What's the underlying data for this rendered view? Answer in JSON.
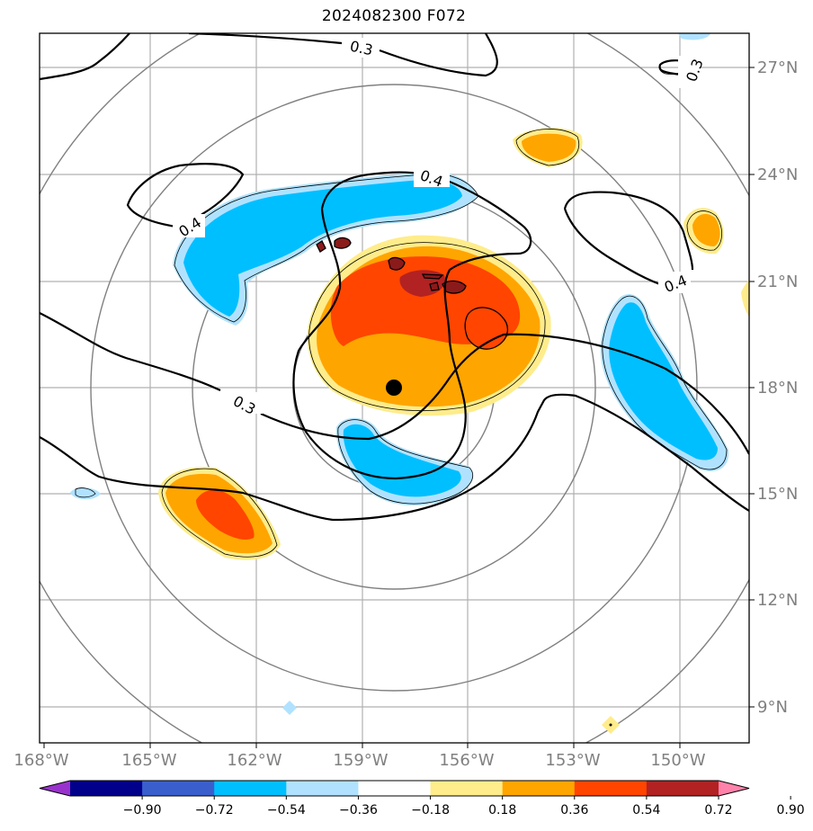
{
  "title": "2024082300 F072",
  "x_axis": {
    "tick_labels": [
      "168°W",
      "165°W",
      "162°W",
      "159°W",
      "156°W",
      "153°W",
      "150°W"
    ]
  },
  "y_axis": {
    "tick_labels": [
      "27°N",
      "24°N",
      "21°N",
      "18°N",
      "15°N",
      "12°N",
      "9°N"
    ]
  },
  "colorbar": {
    "tick_labels": [
      "−0.90",
      "−0.72",
      "−0.54",
      "−0.36",
      "−0.18",
      "0.18",
      "0.36",
      "0.54",
      "0.72",
      "0.90"
    ],
    "colors": [
      "#9932cc",
      "#00008b",
      "#3a5fcd",
      "#00bfff",
      "#b0e2ff",
      "#ffffff",
      "#ffec8b",
      "#ffa500",
      "#ff4500",
      "#b22222",
      "#ff82ab"
    ]
  },
  "contour_labels": [
    "0.3",
    "0.3",
    "0.4",
    "0.4",
    "0.4",
    "0.3"
  ],
  "colors": {
    "grid": "#b0b0b0",
    "range_rings": "#808080",
    "contour": "#000000",
    "island_fill": "#8b1a1a"
  }
}
